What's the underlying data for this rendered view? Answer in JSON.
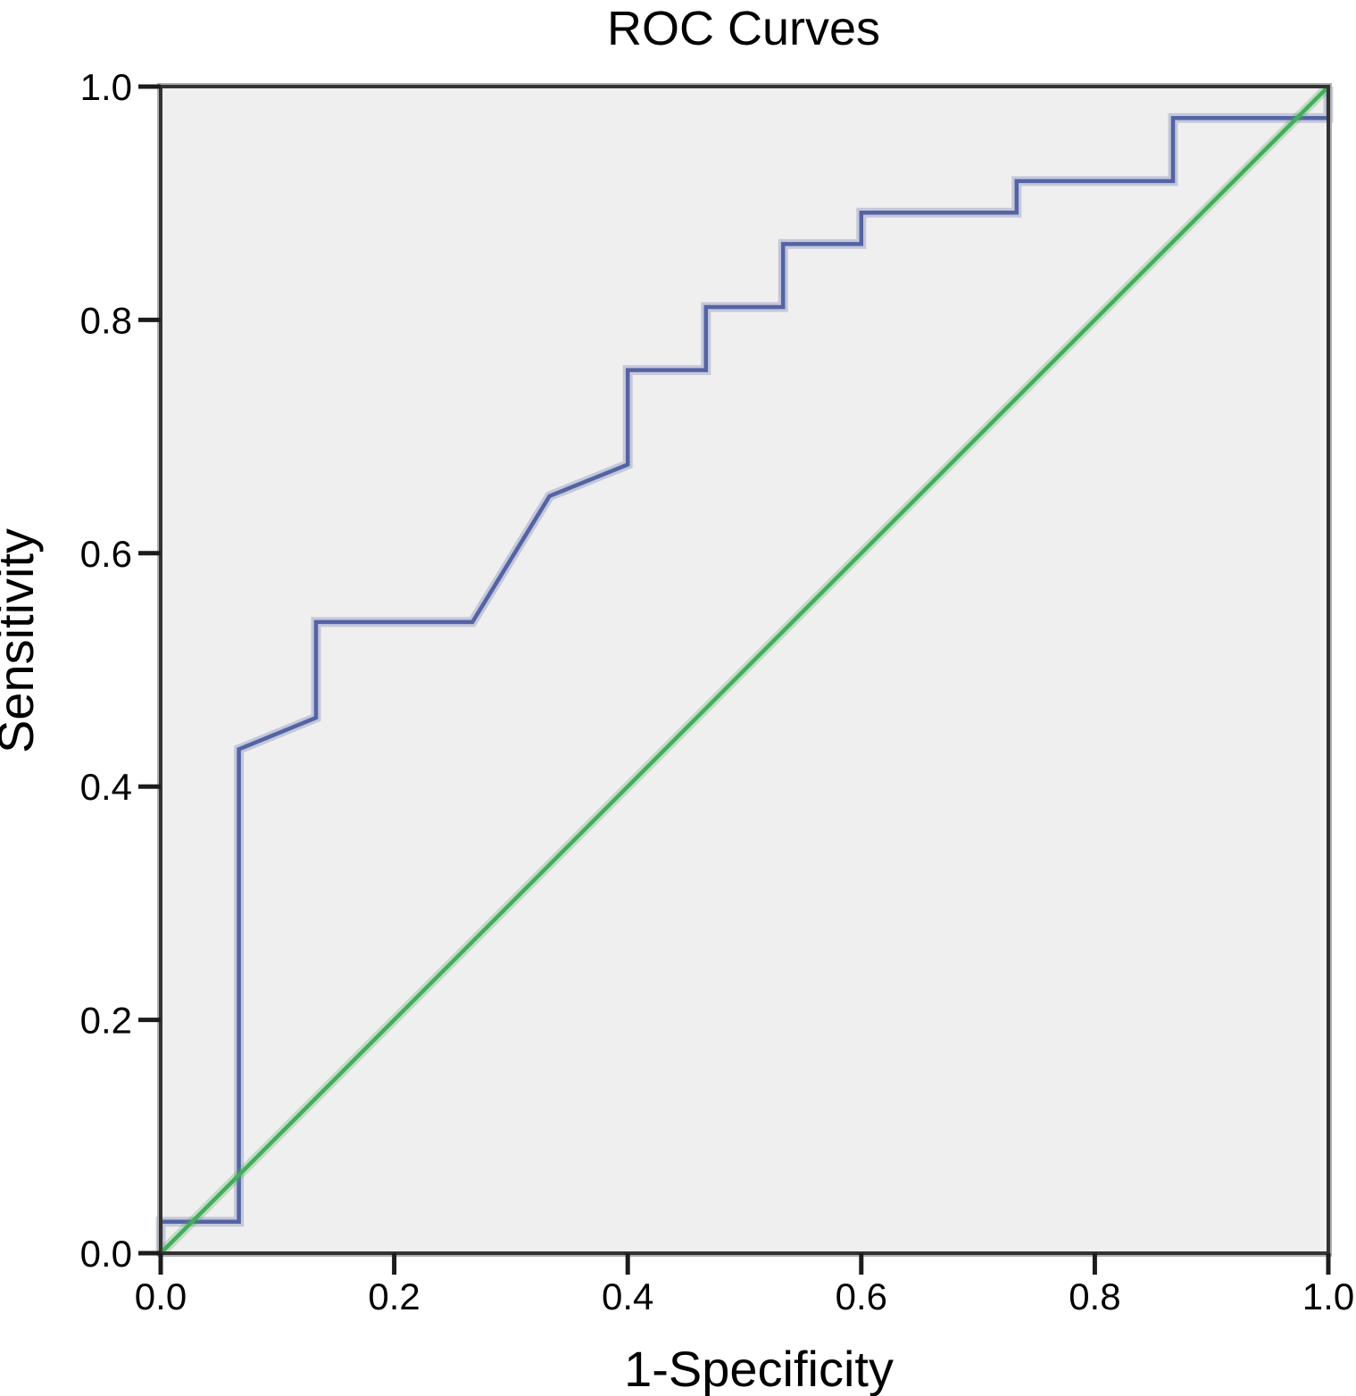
{
  "chart_data": {
    "type": "line",
    "title": "ROC Curves",
    "xlabel": "1-Specificity",
    "ylabel": "Sensitivity",
    "xlim": [
      0,
      1
    ],
    "ylim": [
      0,
      1
    ],
    "x_ticks": [
      "0.0",
      "0.2",
      "0.4",
      "0.6",
      "0.8",
      "1.0"
    ],
    "y_ticks": [
      "0.0",
      "0.2",
      "0.4",
      "0.6",
      "0.8",
      "1.0"
    ],
    "grid": false,
    "legend": "none",
    "plot_background": "#f0efef",
    "frame_color": "#333333",
    "frame_bevel_color": "#b0b0b0",
    "tick_color": "#1c1c1c",
    "text_color": "#000000",
    "series": [
      {
        "name": "ROC curve",
        "color": "#5463a4",
        "style": "step",
        "points": [
          [
            0,
            0
          ],
          [
            0,
            0.027
          ],
          [
            0.067,
            0.027
          ],
          [
            0.067,
            0.432
          ],
          [
            0.133,
            0.459
          ],
          [
            0.133,
            0.541
          ],
          [
            0.267,
            0.541
          ],
          [
            0.333,
            0.649
          ],
          [
            0.4,
            0.676
          ],
          [
            0.4,
            0.757
          ],
          [
            0.467,
            0.757
          ],
          [
            0.467,
            0.811
          ],
          [
            0.533,
            0.811
          ],
          [
            0.533,
            0.865
          ],
          [
            0.6,
            0.865
          ],
          [
            0.6,
            0.892
          ],
          [
            0.733,
            0.892
          ],
          [
            0.733,
            0.919
          ],
          [
            0.867,
            0.919
          ],
          [
            0.867,
            0.973
          ],
          [
            1,
            0.973
          ],
          [
            1,
            1
          ]
        ]
      },
      {
        "name": "Reference line",
        "color": "#43ad5a",
        "style": "diagonal",
        "points": [
          [
            0,
            0
          ],
          [
            1,
            1
          ]
        ]
      }
    ]
  }
}
